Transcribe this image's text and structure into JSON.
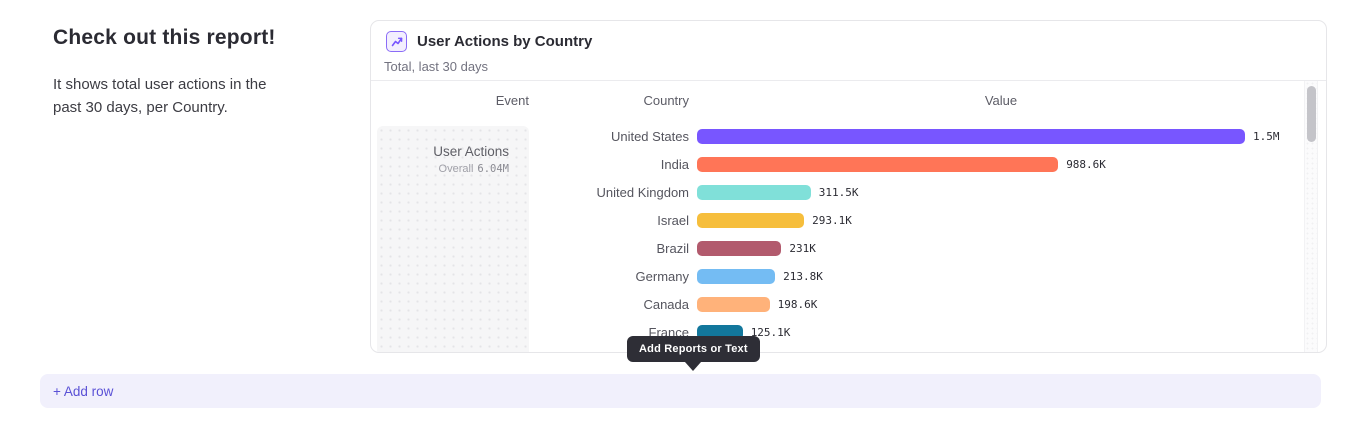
{
  "intro": {
    "title": "Check out this report!",
    "description": "It shows total user actions in the\npast 30 days, per Country."
  },
  "report_card": {
    "icon": "report-chart-icon",
    "title": "User Actions by Country",
    "subtitle": "Total, last 30 days",
    "table": {
      "columns": {
        "event": "Event",
        "country": "Country",
        "value": "Value"
      },
      "event": {
        "name": "User Actions",
        "overall_label": "Overall",
        "overall_value": "6.04M"
      }
    }
  },
  "chart_data": {
    "type": "bar",
    "orientation": "horizontal",
    "title": "User Actions by Country",
    "subtitle": "Total, last 30 days",
    "series_event": "User Actions",
    "overall_total": "6.04M",
    "categories": [
      "United States",
      "India",
      "United Kingdom",
      "Israel",
      "Brazil",
      "Germany",
      "Canada",
      "France"
    ],
    "values": [
      1500000,
      988600,
      311500,
      293100,
      231000,
      213800,
      198600,
      125100
    ],
    "value_labels": [
      "1.5M",
      "988.6K",
      "311.5K",
      "293.1K",
      "231K",
      "213.8K",
      "198.6K",
      "125.1K"
    ],
    "bar_colors": [
      "#7856FF",
      "#FF7557",
      "#80E0D9",
      "#F6BE3C",
      "#B25A6D",
      "#74BCF3",
      "#FFB27A",
      "#12779C"
    ],
    "xlim": [
      0,
      1500000
    ],
    "legend": "none",
    "grid": "off"
  },
  "tooltip": {
    "text": "Add Reports or Text"
  },
  "add_row": {
    "label": "+ Add row",
    "accent_color": "#5A51D6",
    "bar_color": "#F1F0FC"
  }
}
